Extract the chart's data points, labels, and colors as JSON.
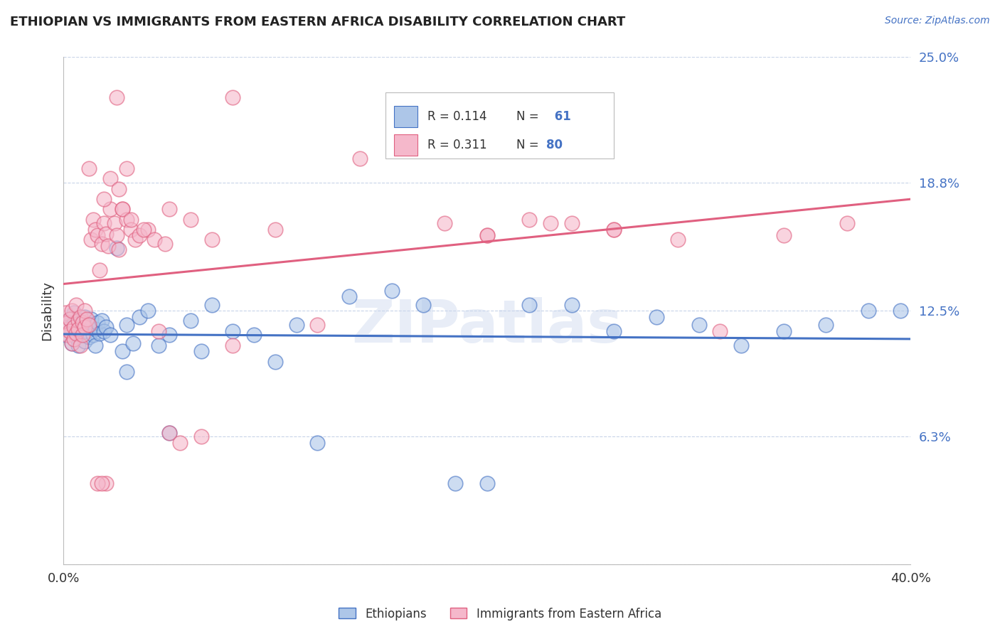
{
  "title": "ETHIOPIAN VS IMMIGRANTS FROM EASTERN AFRICA DISABILITY CORRELATION CHART",
  "source": "Source: ZipAtlas.com",
  "ylabel": "Disability",
  "xlim": [
    0.0,
    0.4
  ],
  "ylim": [
    0.0,
    0.25
  ],
  "yticks": [
    0.0,
    0.063,
    0.125,
    0.188,
    0.25
  ],
  "ytick_labels": [
    "",
    "6.3%",
    "12.5%",
    "18.8%",
    "25.0%"
  ],
  "xticks": [
    0.0,
    0.1,
    0.2,
    0.3,
    0.4
  ],
  "xtick_labels": [
    "0.0%",
    "",
    "",
    "",
    "40.0%"
  ],
  "watermark": "ZIPatlas",
  "blue_color": "#adc6e8",
  "pink_color": "#f5b8cb",
  "line_blue": "#4472c4",
  "line_pink": "#e06080",
  "ethiopians_x": [
    0.001,
    0.002,
    0.003,
    0.004,
    0.004,
    0.005,
    0.005,
    0.006,
    0.007,
    0.007,
    0.008,
    0.008,
    0.009,
    0.01,
    0.01,
    0.011,
    0.012,
    0.012,
    0.013,
    0.014,
    0.015,
    0.015,
    0.016,
    0.017,
    0.018,
    0.019,
    0.02,
    0.022,
    0.025,
    0.028,
    0.03,
    0.033,
    0.036,
    0.04,
    0.045,
    0.05,
    0.06,
    0.065,
    0.07,
    0.08,
    0.09,
    0.1,
    0.11,
    0.12,
    0.135,
    0.155,
    0.17,
    0.185,
    0.2,
    0.22,
    0.24,
    0.26,
    0.28,
    0.3,
    0.32,
    0.34,
    0.36,
    0.38,
    0.395,
    0.03,
    0.05
  ],
  "ethiopians_y": [
    0.113,
    0.118,
    0.121,
    0.115,
    0.109,
    0.124,
    0.119,
    0.112,
    0.116,
    0.108,
    0.12,
    0.114,
    0.117,
    0.122,
    0.11,
    0.115,
    0.118,
    0.112,
    0.121,
    0.113,
    0.116,
    0.108,
    0.119,
    0.114,
    0.12,
    0.115,
    0.117,
    0.113,
    0.156,
    0.105,
    0.118,
    0.109,
    0.122,
    0.125,
    0.108,
    0.113,
    0.12,
    0.105,
    0.128,
    0.115,
    0.113,
    0.1,
    0.118,
    0.06,
    0.132,
    0.135,
    0.128,
    0.04,
    0.04,
    0.128,
    0.128,
    0.115,
    0.122,
    0.118,
    0.108,
    0.115,
    0.118,
    0.125,
    0.125,
    0.095,
    0.065
  ],
  "immigrants_x": [
    0.001,
    0.001,
    0.002,
    0.002,
    0.003,
    0.003,
    0.004,
    0.004,
    0.005,
    0.005,
    0.006,
    0.006,
    0.007,
    0.007,
    0.008,
    0.008,
    0.009,
    0.009,
    0.01,
    0.01,
    0.011,
    0.012,
    0.013,
    0.014,
    0.015,
    0.016,
    0.017,
    0.018,
    0.019,
    0.02,
    0.021,
    0.022,
    0.024,
    0.025,
    0.026,
    0.028,
    0.03,
    0.032,
    0.034,
    0.036,
    0.04,
    0.045,
    0.05,
    0.06,
    0.07,
    0.08,
    0.1,
    0.12,
    0.14,
    0.16,
    0.18,
    0.2,
    0.22,
    0.24,
    0.26,
    0.29,
    0.31,
    0.34,
    0.37,
    0.2,
    0.23,
    0.26,
    0.05,
    0.055,
    0.065,
    0.08,
    0.025,
    0.03,
    0.02,
    0.016,
    0.018,
    0.012,
    0.022,
    0.019,
    0.026,
    0.028,
    0.032,
    0.038,
    0.043,
    0.048
  ],
  "immigrants_y": [
    0.116,
    0.124,
    0.119,
    0.113,
    0.121,
    0.115,
    0.125,
    0.109,
    0.117,
    0.111,
    0.128,
    0.114,
    0.12,
    0.116,
    0.122,
    0.108,
    0.119,
    0.113,
    0.125,
    0.117,
    0.121,
    0.118,
    0.16,
    0.17,
    0.165,
    0.162,
    0.145,
    0.158,
    0.168,
    0.163,
    0.157,
    0.175,
    0.168,
    0.162,
    0.155,
    0.175,
    0.17,
    0.165,
    0.16,
    0.162,
    0.165,
    0.115,
    0.175,
    0.17,
    0.16,
    0.108,
    0.165,
    0.118,
    0.2,
    0.21,
    0.168,
    0.162,
    0.17,
    0.168,
    0.165,
    0.16,
    0.115,
    0.162,
    0.168,
    0.162,
    0.168,
    0.165,
    0.065,
    0.06,
    0.063,
    0.23,
    0.23,
    0.195,
    0.04,
    0.04,
    0.04,
    0.195,
    0.19,
    0.18,
    0.185,
    0.175,
    0.17,
    0.165,
    0.16,
    0.158
  ]
}
